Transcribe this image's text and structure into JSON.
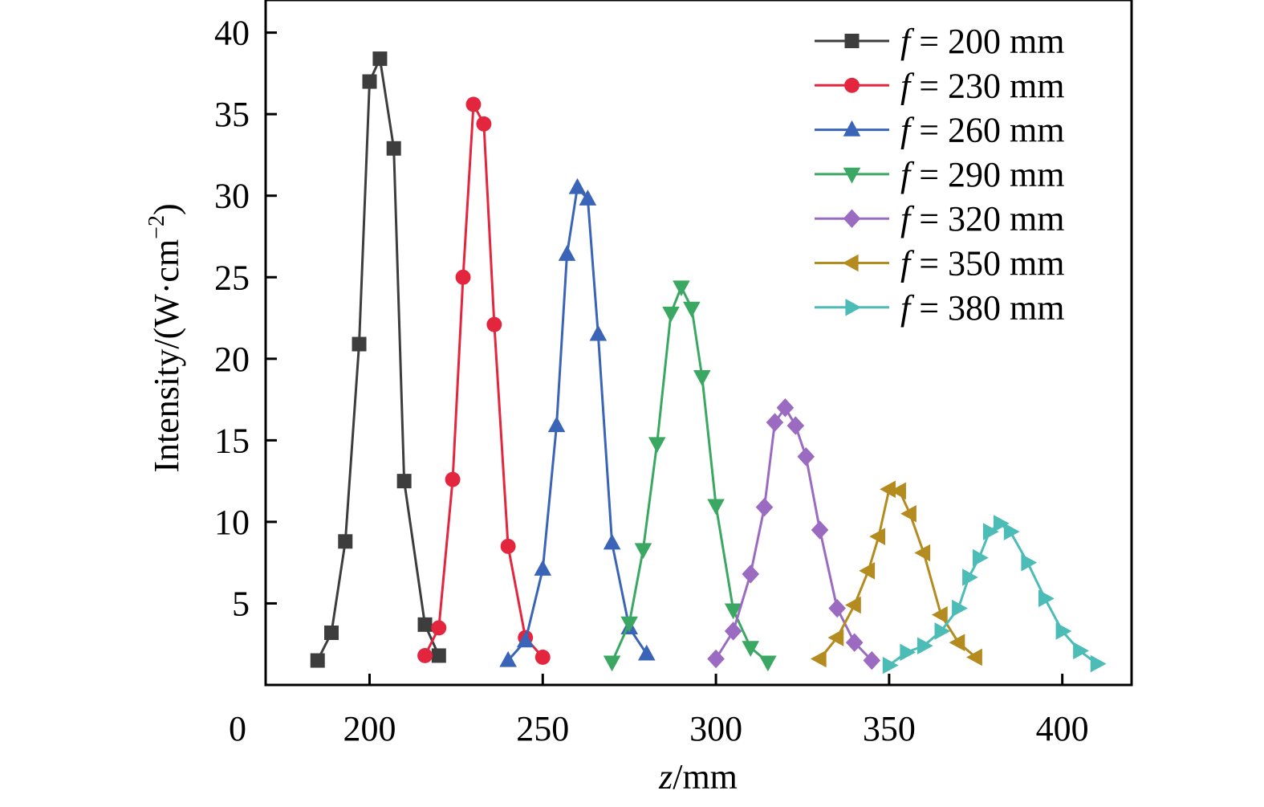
{
  "chart_data": {
    "type": "line",
    "title": "",
    "xlabel_var": "z",
    "xlabel_unit": "/mm",
    "ylabel_main": "Intensity/(W·cm",
    "ylabel_sup": "−2",
    "ylabel_close": ")",
    "xlim": [
      170,
      420
    ],
    "ylim": [
      0,
      42
    ],
    "x_ticks": [
      200,
      250,
      300,
      350,
      400
    ],
    "x_tick_labels": [
      "200",
      "250",
      "300",
      "350",
      "400"
    ],
    "y_ticks": [
      5,
      10,
      15,
      20,
      25,
      30,
      35,
      40
    ],
    "y_tick_labels": [
      "5",
      "10",
      "15",
      "20",
      "25",
      "30",
      "35",
      "40"
    ],
    "origin_label": "0",
    "grid": false,
    "legend_position": "top-right",
    "series": [
      {
        "name": "f = 200 mm",
        "name_var": "f",
        "name_rest": " = 200 mm",
        "color": "#3d3d3d",
        "marker": "square",
        "points": [
          [
            185,
            1.5
          ],
          [
            189,
            3.2
          ],
          [
            193,
            8.8
          ],
          [
            197,
            20.9
          ],
          [
            200,
            37.0
          ],
          [
            203,
            38.4
          ],
          [
            207,
            32.9
          ],
          [
            210,
            12.5
          ],
          [
            216,
            3.7
          ],
          [
            220,
            1.8
          ]
        ]
      },
      {
        "name": "f = 230 mm",
        "name_var": "f",
        "name_rest": " = 230 mm",
        "color": "#e3263e",
        "marker": "circle",
        "points": [
          [
            216,
            1.8
          ],
          [
            220,
            3.5
          ],
          [
            224,
            12.6
          ],
          [
            227,
            25.0
          ],
          [
            230,
            35.6
          ],
          [
            233,
            34.4
          ],
          [
            236,
            22.1
          ],
          [
            240,
            8.5
          ],
          [
            245,
            2.9
          ],
          [
            250,
            1.7
          ]
        ]
      },
      {
        "name": "f = 260 mm",
        "name_var": "f",
        "name_rest": " = 260 mm",
        "color": "#3a64b7",
        "marker": "triangle-up",
        "points": [
          [
            240,
            1.5
          ],
          [
            245,
            2.7
          ],
          [
            250,
            7.1
          ],
          [
            254,
            15.9
          ],
          [
            257,
            26.4
          ],
          [
            260,
            30.5
          ],
          [
            263,
            29.8
          ],
          [
            266,
            21.5
          ],
          [
            270,
            8.7
          ],
          [
            275,
            3.5
          ],
          [
            280,
            1.9
          ]
        ]
      },
      {
        "name": "f = 290 mm",
        "name_var": "f",
        "name_rest": " = 290 mm",
        "color": "#3aa862",
        "marker": "triangle-down",
        "points": [
          [
            270,
            1.4
          ],
          [
            275,
            3.8
          ],
          [
            279,
            8.3
          ],
          [
            283,
            14.8
          ],
          [
            287,
            22.8
          ],
          [
            290,
            24.4
          ],
          [
            293,
            23.1
          ],
          [
            296,
            18.9
          ],
          [
            300,
            11.0
          ],
          [
            305,
            4.6
          ],
          [
            310,
            2.3
          ],
          [
            315,
            1.4
          ]
        ]
      },
      {
        "name": "f = 320 mm",
        "name_var": "f",
        "name_rest": " = 320 mm",
        "color": "#9a6bc0",
        "marker": "diamond",
        "points": [
          [
            300,
            1.6
          ],
          [
            305,
            3.3
          ],
          [
            310,
            6.8
          ],
          [
            314,
            10.9
          ],
          [
            317,
            16.1
          ],
          [
            320,
            17.0
          ],
          [
            323,
            15.9
          ],
          [
            326,
            14.0
          ],
          [
            330,
            9.5
          ],
          [
            335,
            4.7
          ],
          [
            340,
            2.6
          ],
          [
            345,
            1.5
          ]
        ]
      },
      {
        "name": "f = 350 mm",
        "name_var": "f",
        "name_rest": " = 350 mm",
        "color": "#b48b1e",
        "marker": "triangle-left",
        "points": [
          [
            330,
            1.6
          ],
          [
            335,
            2.9
          ],
          [
            340,
            4.9
          ],
          [
            344,
            7.0
          ],
          [
            347,
            9.1
          ],
          [
            350,
            12.0
          ],
          [
            353,
            11.9
          ],
          [
            356,
            10.5
          ],
          [
            360,
            8.1
          ],
          [
            365,
            4.3
          ],
          [
            370,
            2.6
          ],
          [
            375,
            1.7
          ]
        ]
      },
      {
        "name": "f = 380 mm",
        "name_var": "f",
        "name_rest": " = 380 mm",
        "color": "#4cbcb6",
        "marker": "triangle-right",
        "points": [
          [
            350,
            1.2
          ],
          [
            355,
            2.0
          ],
          [
            360,
            2.4
          ],
          [
            365,
            3.3
          ],
          [
            370,
            4.7
          ],
          [
            373,
            6.6
          ],
          [
            376,
            7.8
          ],
          [
            379,
            9.4
          ],
          [
            382,
            9.9
          ],
          [
            385,
            9.4
          ],
          [
            390,
            7.5
          ],
          [
            395,
            5.3
          ],
          [
            400,
            3.3
          ],
          [
            405,
            2.1
          ],
          [
            410,
            1.3
          ]
        ]
      }
    ]
  }
}
